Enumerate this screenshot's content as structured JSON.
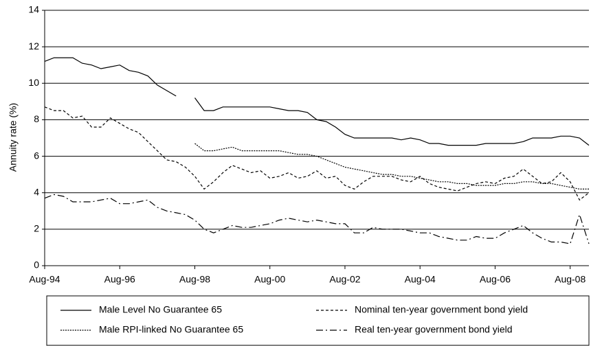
{
  "chart_data": {
    "type": "line",
    "ylabel": "Annuity rate (%)",
    "categories": [
      "Aug-94",
      null,
      null,
      null,
      null,
      null,
      null,
      null,
      "Aug-96",
      null,
      null,
      null,
      null,
      null,
      null,
      null,
      "Aug-98",
      null,
      null,
      null,
      null,
      null,
      null,
      null,
      "Aug-00",
      null,
      null,
      null,
      null,
      null,
      null,
      null,
      "Aug-02",
      null,
      null,
      null,
      null,
      null,
      null,
      null,
      "Aug-04",
      null,
      null,
      null,
      null,
      null,
      null,
      null,
      "Aug-06",
      null,
      null,
      null,
      null,
      null,
      null,
      null,
      "Aug-08",
      null,
      null
    ],
    "ylim": [
      0,
      14
    ],
    "yticks": [
      0,
      2,
      4,
      6,
      8,
      10,
      12,
      14
    ],
    "grid": true,
    "series": [
      {
        "name": "Male Level No Guarantee 65",
        "color": "#000000",
        "dash": "solid",
        "values": [
          11.2,
          11.4,
          11.4,
          11.4,
          11.1,
          11.0,
          10.8,
          10.9,
          11.0,
          10.7,
          10.6,
          10.4,
          9.9,
          9.6,
          9.3,
          null,
          9.2,
          8.5,
          8.5,
          8.7,
          8.7,
          8.7,
          8.7,
          8.7,
          8.7,
          8.6,
          8.5,
          8.5,
          8.4,
          8.0,
          7.9,
          7.6,
          7.2,
          7.0,
          7.0,
          7.0,
          7.0,
          7.0,
          6.9,
          7.0,
          6.9,
          6.7,
          6.7,
          6.6,
          6.6,
          6.6,
          6.6,
          6.7,
          6.7,
          6.7,
          6.7,
          6.8,
          7.0,
          7.0,
          7.0,
          7.1,
          7.1,
          7.0,
          6.6
        ]
      },
      {
        "name": "Nominal ten-year government bond yield",
        "color": "#000000",
        "dash": "dashed",
        "values": [
          8.7,
          8.5,
          8.5,
          8.1,
          8.2,
          7.6,
          7.6,
          8.1,
          7.8,
          7.5,
          7.3,
          6.8,
          6.3,
          5.8,
          5.7,
          5.4,
          4.9,
          4.2,
          4.6,
          5.1,
          5.5,
          5.3,
          5.1,
          5.2,
          4.8,
          4.9,
          5.1,
          4.8,
          4.9,
          5.2,
          4.8,
          4.9,
          4.4,
          4.2,
          4.6,
          4.9,
          4.9,
          4.9,
          4.7,
          4.6,
          4.9,
          4.5,
          4.3,
          4.2,
          4.1,
          4.3,
          4.5,
          4.6,
          4.5,
          4.8,
          4.9,
          5.3,
          4.9,
          4.5,
          4.6,
          5.1,
          4.6,
          3.6,
          4.0
        ]
      },
      {
        "name": "Male RPI-linked No Guarantee 65",
        "color": "#000000",
        "dash": "dotted",
        "values": [
          null,
          null,
          null,
          null,
          null,
          null,
          null,
          null,
          null,
          null,
          null,
          null,
          null,
          null,
          null,
          null,
          6.7,
          6.3,
          6.3,
          6.4,
          6.5,
          6.3,
          6.3,
          6.3,
          6.3,
          6.3,
          6.2,
          6.1,
          6.1,
          6.0,
          5.8,
          5.6,
          5.4,
          5.3,
          5.2,
          5.1,
          5.0,
          5.0,
          4.9,
          4.9,
          4.8,
          4.7,
          4.6,
          4.6,
          4.5,
          4.5,
          4.4,
          4.4,
          4.4,
          4.5,
          4.5,
          4.6,
          4.6,
          4.5,
          4.5,
          4.4,
          4.3,
          4.2,
          4.2
        ]
      },
      {
        "name": "Real ten-year government bond yield",
        "color": "#000000",
        "dash": "dashdot",
        "values": [
          3.7,
          3.9,
          3.8,
          3.5,
          3.5,
          3.5,
          3.6,
          3.7,
          3.4,
          3.4,
          3.5,
          3.6,
          3.2,
          3.0,
          2.9,
          2.8,
          2.5,
          2.0,
          1.8,
          2.0,
          2.2,
          2.1,
          2.1,
          2.2,
          2.3,
          2.5,
          2.6,
          2.5,
          2.4,
          2.5,
          2.4,
          2.3,
          2.3,
          1.8,
          1.8,
          2.1,
          2.0,
          2.0,
          2.0,
          1.9,
          1.8,
          1.8,
          1.6,
          1.5,
          1.4,
          1.4,
          1.6,
          1.5,
          1.5,
          1.8,
          2.0,
          2.2,
          1.8,
          1.5,
          1.3,
          1.3,
          1.2,
          2.8,
          1.2
        ]
      }
    ]
  }
}
